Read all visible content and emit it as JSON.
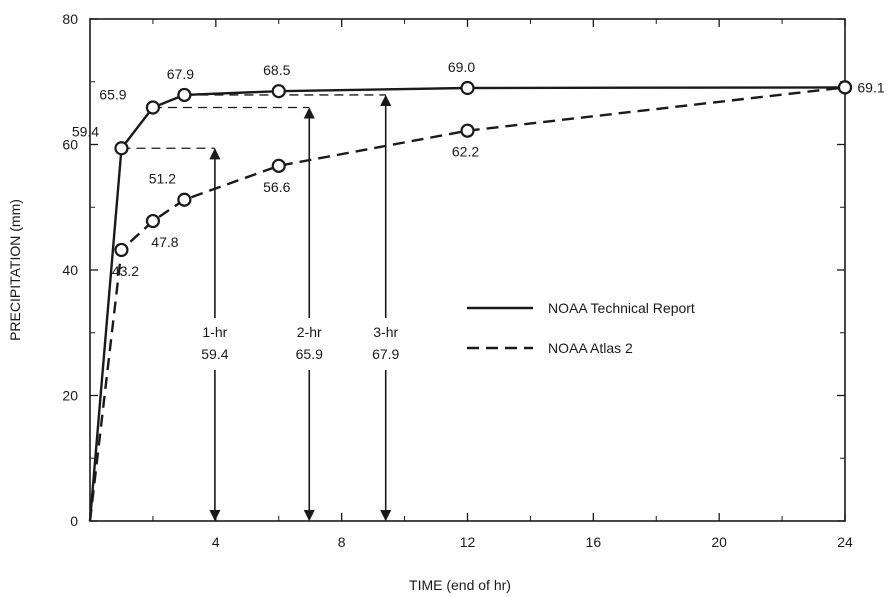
{
  "chart_data": {
    "type": "line",
    "xlabel": "TIME (end of hr)",
    "ylabel": "PRECIPITATION (mm)",
    "xlim": [
      0,
      24
    ],
    "ylim": [
      0,
      80
    ],
    "x_ticks": [
      4,
      8,
      12,
      16,
      20,
      24
    ],
    "y_ticks": [
      0,
      20,
      40,
      60,
      80
    ],
    "grid": false,
    "legend_position": "right",
    "series": [
      {
        "name": "NOAA Technical Report",
        "style": "solid",
        "points": [
          {
            "x": 0,
            "y": 0,
            "marker": false
          },
          {
            "x": 1,
            "y": 59.4,
            "label": "59.4"
          },
          {
            "x": 2,
            "y": 65.9,
            "label": "65.9"
          },
          {
            "x": 3,
            "y": 67.9,
            "label": "67.9"
          },
          {
            "x": 6,
            "y": 68.5,
            "label": "68.5"
          },
          {
            "x": 12,
            "y": 69.0,
            "label": "69.0"
          },
          {
            "x": 24,
            "y": 69.1,
            "label": "69.1"
          }
        ]
      },
      {
        "name": "NOAA Atlas 2",
        "style": "dashed",
        "points": [
          {
            "x": 0,
            "y": 0,
            "marker": false
          },
          {
            "x": 1,
            "y": 43.2,
            "label": "43.2"
          },
          {
            "x": 2,
            "y": 47.8,
            "label": "47.8"
          },
          {
            "x": 3,
            "y": 51.2,
            "label": "51.2"
          },
          {
            "x": 6,
            "y": 56.6,
            "label": "56.6"
          },
          {
            "x": 12,
            "y": 62.2,
            "label": "62.2"
          },
          {
            "x": 24,
            "y": 69.1
          }
        ]
      }
    ],
    "annotations": [
      {
        "duration": "1-hr",
        "value": "59.4",
        "level": 59.4,
        "arrow_x": 3.97,
        "from_x": 1
      },
      {
        "duration": "2-hr",
        "value": "65.9",
        "level": 65.9,
        "arrow_x": 6.97,
        "from_x": 2
      },
      {
        "duration": "3-hr",
        "value": "67.9",
        "level": 67.9,
        "arrow_x": 9.4,
        "from_x": 3
      }
    ]
  }
}
